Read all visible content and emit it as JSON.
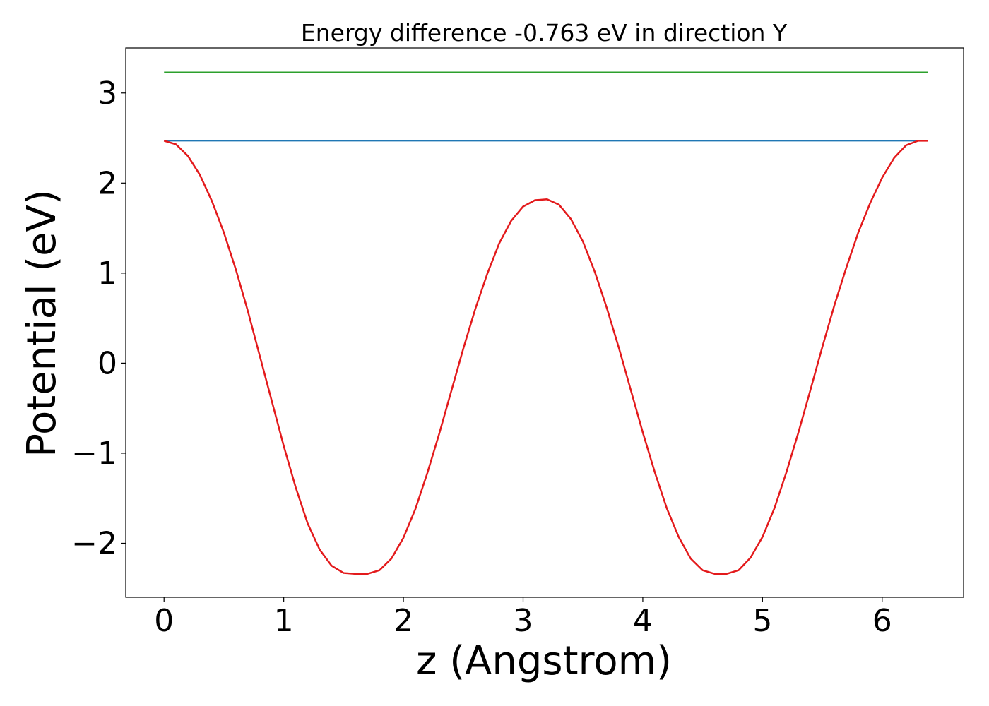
{
  "chart_data": {
    "type": "line",
    "title": "Energy difference -0.763 eV in direction Y",
    "xlabel": "z (Angstrom)",
    "ylabel": "Potential (eV)",
    "xlim": [
      -0.32,
      6.68
    ],
    "ylim": [
      -2.6,
      3.5
    ],
    "xticks": [
      0,
      1,
      2,
      3,
      4,
      5,
      6
    ],
    "xtick_labels": [
      "0",
      "1",
      "2",
      "3",
      "4",
      "5",
      "6"
    ],
    "yticks": [
      -2,
      -1,
      0,
      1,
      2,
      3
    ],
    "ytick_labels": [
      "−2",
      "−1",
      "0",
      "1",
      "2",
      "3"
    ],
    "grid": false,
    "legend": "none",
    "series": [
      {
        "color": "#2ca02c",
        "x": [
          0,
          6.38
        ],
        "y": [
          3.23,
          3.23
        ]
      },
      {
        "color": "#1f77b4",
        "x": [
          0,
          6.38
        ],
        "y": [
          2.47,
          2.47
        ]
      },
      {
        "color": "#e31a1c",
        "x": [
          0.0,
          0.1,
          0.2,
          0.3,
          0.4,
          0.5,
          0.6,
          0.7,
          0.8,
          0.9,
          1.0,
          1.1,
          1.2,
          1.3,
          1.4,
          1.5,
          1.6,
          1.7,
          1.8,
          1.9,
          2.0,
          2.1,
          2.2,
          2.3,
          2.4,
          2.5,
          2.6,
          2.7,
          2.8,
          2.9,
          3.0,
          3.1,
          3.2,
          3.3,
          3.4,
          3.5,
          3.6,
          3.7,
          3.8,
          3.9,
          4.0,
          4.1,
          4.2,
          4.3,
          4.4,
          4.5,
          4.6,
          4.7,
          4.8,
          4.9,
          5.0,
          5.1,
          5.2,
          5.3,
          5.4,
          5.5,
          5.6,
          5.7,
          5.8,
          5.9,
          6.0,
          6.1,
          6.2,
          6.3,
          6.38
        ],
        "y": [
          2.47,
          2.43,
          2.3,
          2.09,
          1.8,
          1.45,
          1.04,
          0.58,
          0.08,
          -0.42,
          -0.92,
          -1.38,
          -1.78,
          -2.07,
          -2.25,
          -2.33,
          -2.34,
          -2.34,
          -2.3,
          -2.17,
          -1.94,
          -1.62,
          -1.22,
          -0.78,
          -0.31,
          0.16,
          0.6,
          0.99,
          1.33,
          1.58,
          1.74,
          1.81,
          1.82,
          1.76,
          1.6,
          1.35,
          1.01,
          0.61,
          0.17,
          -0.3,
          -0.77,
          -1.21,
          -1.61,
          -1.93,
          -2.17,
          -2.3,
          -2.34,
          -2.34,
          -2.3,
          -2.16,
          -1.93,
          -1.61,
          -1.21,
          -0.77,
          -0.3,
          0.18,
          0.64,
          1.06,
          1.45,
          1.78,
          2.06,
          2.28,
          2.42,
          2.47,
          2.47
        ]
      }
    ]
  }
}
